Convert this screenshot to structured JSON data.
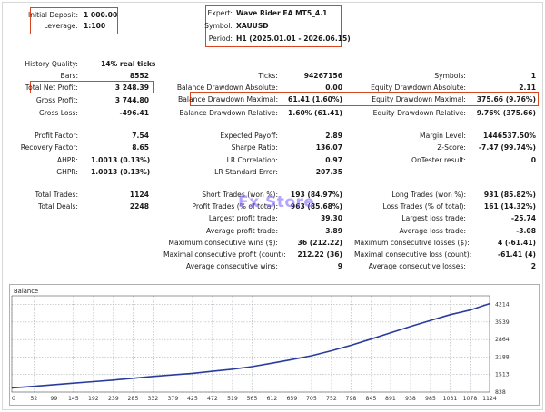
{
  "header": {
    "initial_deposit_label": "Initial Deposit:",
    "initial_deposit_value": "1 000.00",
    "leverage_label": "Leverage:",
    "leverage_value": "1:100",
    "expert_label": "Expert:",
    "expert_value": "Wave Rider EA MT5_4.1",
    "symbol_label": "Symbol:",
    "symbol_value": "XAUUSD",
    "period_label": "Period:",
    "period_value": "H1 (2025.01.01 - 2026.06.15)"
  },
  "stats": {
    "history_quality_label": "History Quality:",
    "history_quality_value": "14% real ticks",
    "bars_label": "Bars:",
    "bars_value": "8552",
    "ticks_label": "Ticks:",
    "ticks_value": "94267156",
    "symbols_label": "Symbols:",
    "symbols_value": "1",
    "total_net_profit_label": "Total Net Profit:",
    "total_net_profit_value": "3 248.39",
    "balance_dd_abs_label": "Balance Drawdown Absolute:",
    "balance_dd_abs_value": "0.00",
    "equity_dd_abs_label": "Equity Drawdown Absolute:",
    "equity_dd_abs_value": "2.11",
    "gross_profit_label": "Gross Profit:",
    "gross_profit_value": "3 744.80",
    "balance_dd_max_label": "Balance Drawdown Maximal:",
    "balance_dd_max_value": "61.41 (1.60%)",
    "equity_dd_max_label": "Equity Drawdown Maximal:",
    "equity_dd_max_value": "375.66 (9.76%)",
    "gross_loss_label": "Gross Loss:",
    "gross_loss_value": "-496.41",
    "balance_dd_rel_label": "Balance Drawdown Relative:",
    "balance_dd_rel_value": "1.60% (61.41)",
    "equity_dd_rel_label": "Equity Drawdown Relative:",
    "equity_dd_rel_value": "9.76% (375.66)",
    "profit_factor_label": "Profit Factor:",
    "profit_factor_value": "7.54",
    "expected_payoff_label": "Expected Payoff:",
    "expected_payoff_value": "2.89",
    "margin_level_label": "Margin Level:",
    "margin_level_value": "1446537.50%",
    "recovery_factor_label": "Recovery Factor:",
    "recovery_factor_value": "8.65",
    "sharpe_label": "Sharpe Ratio:",
    "sharpe_value": "136.07",
    "zscore_label": "Z-Score:",
    "zscore_value": "-7.47 (99.74%)",
    "ahpr_label": "AHPR:",
    "ahpr_value": "1.0013 (0.13%)",
    "lr_corr_label": "LR Correlation:",
    "lr_corr_value": "0.97",
    "ontester_label": "OnTester result:",
    "ontester_value": "0",
    "ghpr_label": "GHPR:",
    "ghpr_value": "1.0013 (0.13%)",
    "lr_se_label": "LR Standard Error:",
    "lr_se_value": "207.35",
    "total_trades_label": "Total Trades:",
    "total_trades_value": "1124",
    "short_trades_label": "Short Trades (won %):",
    "short_trades_value": "193 (84.97%)",
    "long_trades_label": "Long Trades (won %):",
    "long_trades_value": "931 (85.82%)",
    "total_deals_label": "Total Deals:",
    "total_deals_value": "2248",
    "profit_trades_label": "Profit Trades (% of total):",
    "profit_trades_value": "963 (85.68%)",
    "loss_trades_label": "Loss Trades (% of total):",
    "loss_trades_value": "161 (14.32%)",
    "largest_profit_label": "Largest profit trade:",
    "largest_profit_value": "39.30",
    "largest_loss_label": "Largest loss trade:",
    "largest_loss_value": "-25.74",
    "avg_profit_label": "Average profit trade:",
    "avg_profit_value": "3.89",
    "avg_loss_label": "Average loss trade:",
    "avg_loss_value": "-3.08",
    "max_consec_wins_label": "Maximum consecutive wins ($):",
    "max_consec_wins_value": "36 (212.22)",
    "max_consec_losses_label": "Maximum consecutive losses ($):",
    "max_consec_losses_value": "4 (-61.41)",
    "maximal_consec_profit_label": "Maximal consecutive profit (count):",
    "maximal_consec_profit_value": "212.22 (36)",
    "maximal_consec_loss_label": "Maximal consecutive loss (count):",
    "maximal_consec_loss_value": "-61.41 (4)",
    "avg_consec_wins_label": "Average consecutive wins:",
    "avg_consec_wins_value": "9",
    "avg_consec_losses_label": "Average consecutive losses:",
    "avg_consec_losses_value": "2"
  },
  "watermark": "Fx Store",
  "colors": {
    "highlight_border": "#d9451f",
    "balance_line": "#2a3b9e"
  },
  "chart_data": {
    "type": "line",
    "title": "Balance",
    "x_ticks": [
      "0",
      "52",
      "99",
      "145",
      "192",
      "239",
      "285",
      "332",
      "379",
      "425",
      "472",
      "519",
      "565",
      "612",
      "659",
      "705",
      "752",
      "798",
      "845",
      "891",
      "938",
      "985",
      "1031",
      "1078",
      "1124"
    ],
    "y_ticks": [
      "838",
      "1513",
      "2188",
      "2864",
      "3539",
      "4214"
    ],
    "xlim": [
      0,
      1124
    ],
    "ylim": [
      838,
      4550
    ],
    "series": [
      {
        "x": [
          0,
          52,
          99,
          145,
          192,
          239,
          285,
          332,
          379,
          425,
          472,
          519,
          565,
          612,
          659,
          705,
          752,
          798,
          845,
          891,
          938,
          985,
          1031,
          1078,
          1124
        ],
        "values": [
          1000,
          1060,
          1120,
          1180,
          1240,
          1300,
          1370,
          1440,
          1500,
          1560,
          1640,
          1720,
          1820,
          1950,
          2090,
          2240,
          2430,
          2640,
          2880,
          3120,
          3370,
          3600,
          3820,
          4000,
          4248
        ]
      }
    ]
  }
}
